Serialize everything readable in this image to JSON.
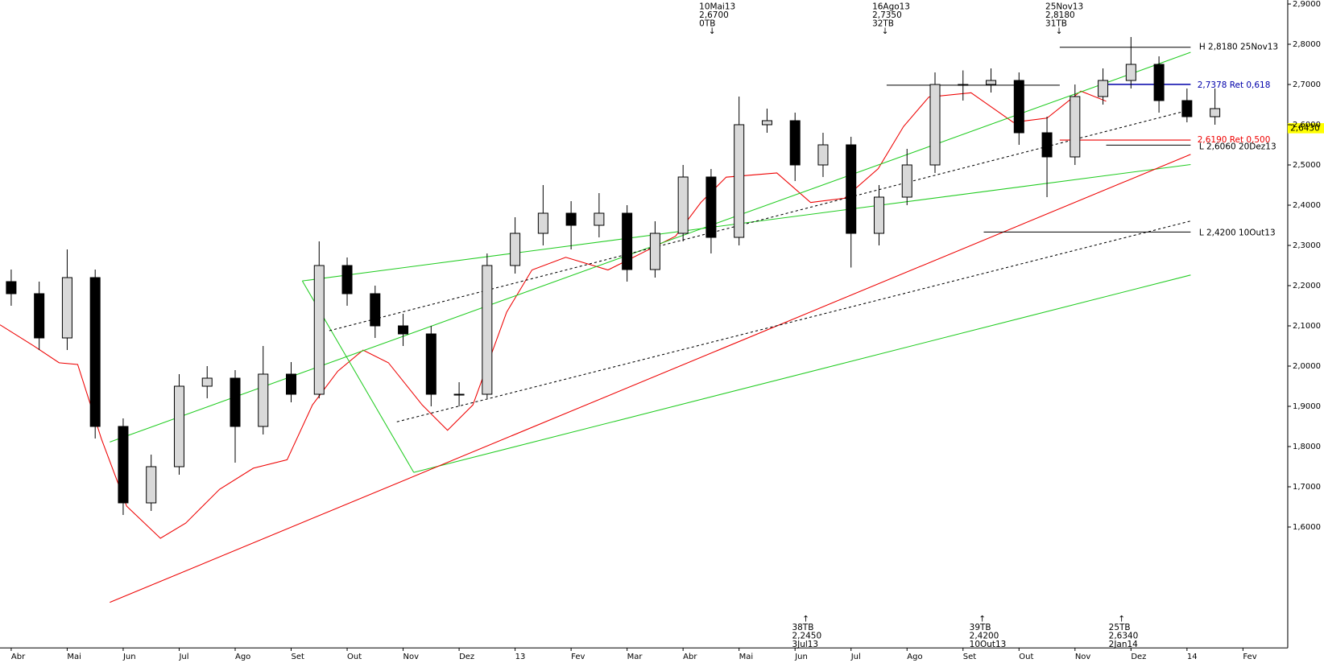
{
  "chart_data": {
    "type": "candlestick",
    "x": [
      0,
      0.5,
      1,
      1.5,
      2,
      2.5,
      3,
      3.5,
      4,
      4.5,
      5,
      5.5,
      6,
      6.5,
      7,
      7.5,
      8,
      8.5,
      9,
      9.5,
      10,
      10.5,
      11,
      11.5,
      12,
      12.5,
      13,
      13.5,
      14,
      14.5,
      15,
      15.5,
      16,
      16.5,
      17,
      17.5,
      18,
      18.5,
      19,
      19.5,
      20,
      20.5,
      21,
      21.5
    ],
    "open": [
      2.21,
      2.18,
      2.07,
      2.22,
      1.85,
      1.66,
      1.75,
      1.95,
      1.97,
      1.85,
      1.98,
      1.93,
      2.25,
      2.18,
      2.1,
      2.08,
      1.93,
      1.93,
      2.25,
      2.33,
      2.38,
      2.35,
      2.38,
      2.24,
      2.33,
      2.47,
      2.32,
      2.6,
      2.61,
      2.5,
      2.55,
      2.33,
      2.42,
      2.5,
      2.7,
      2.7,
      2.71,
      2.58,
      2.52,
      2.67,
      2.71,
      2.75,
      2.66,
      2.62
    ],
    "high": [
      2.24,
      2.21,
      2.29,
      2.24,
      1.87,
      1.78,
      1.98,
      2.0,
      1.99,
      2.05,
      2.01,
      2.31,
      2.27,
      2.2,
      2.13,
      2.1,
      1.96,
      2.28,
      2.37,
      2.45,
      2.41,
      2.43,
      2.4,
      2.36,
      2.5,
      2.49,
      2.67,
      2.64,
      2.63,
      2.58,
      2.57,
      2.45,
      2.54,
      2.73,
      2.735,
      2.74,
      2.73,
      2.62,
      2.7,
      2.74,
      2.818,
      2.77,
      2.69,
      2.69
    ],
    "low": [
      2.15,
      2.04,
      2.04,
      1.82,
      1.63,
      1.64,
      1.73,
      1.92,
      1.76,
      1.83,
      1.91,
      1.92,
      2.15,
      2.07,
      2.05,
      1.9,
      1.9,
      1.92,
      2.23,
      2.3,
      2.29,
      2.32,
      2.21,
      2.22,
      2.31,
      2.28,
      2.3,
      2.58,
      2.46,
      2.47,
      2.245,
      2.3,
      2.4,
      2.48,
      2.66,
      2.68,
      2.55,
      2.42,
      2.5,
      2.65,
      2.69,
      2.63,
      2.606,
      2.6
    ],
    "close": [
      2.18,
      2.07,
      2.22,
      1.85,
      1.66,
      1.75,
      1.95,
      1.97,
      1.85,
      1.98,
      1.93,
      2.25,
      2.18,
      2.1,
      2.08,
      1.93,
      1.93,
      2.25,
      2.33,
      2.38,
      2.35,
      2.38,
      2.24,
      2.33,
      2.47,
      2.32,
      2.6,
      2.61,
      2.5,
      2.55,
      2.33,
      2.42,
      2.5,
      2.7,
      2.7,
      2.71,
      2.58,
      2.52,
      2.67,
      2.71,
      2.75,
      2.66,
      2.62,
      2.64
    ],
    "up_color": "#d9d9d9",
    "down_color": "#000000",
    "xlim": [
      -0.2,
      22.8
    ],
    "xticks": [
      {
        "value": 0,
        "label": "Abr"
      },
      {
        "value": 1,
        "label": "Mai"
      },
      {
        "value": 2,
        "label": "Jun"
      },
      {
        "value": 3,
        "label": "Jul"
      },
      {
        "value": 4,
        "label": "Ago"
      },
      {
        "value": 5,
        "label": "Set"
      },
      {
        "value": 6,
        "label": "Out"
      },
      {
        "value": 7,
        "label": "Nov"
      },
      {
        "value": 8,
        "label": "Dez"
      },
      {
        "value": 9,
        "label": "13"
      },
      {
        "value": 10,
        "label": "Fev"
      },
      {
        "value": 11,
        "label": "Mar"
      },
      {
        "value": 12,
        "label": "Abr"
      },
      {
        "value": 13,
        "label": "Mai"
      },
      {
        "value": 14,
        "label": "Jun"
      },
      {
        "value": 15,
        "label": "Jul"
      },
      {
        "value": 16,
        "label": "Ago"
      },
      {
        "value": 17,
        "label": "Set"
      },
      {
        "value": 18,
        "label": "Out"
      },
      {
        "value": 19,
        "label": "Nov"
      },
      {
        "value": 20,
        "label": "Dez"
      },
      {
        "value": 21,
        "label": "14"
      },
      {
        "value": 22,
        "label": "Fev"
      }
    ],
    "ylim": [
      1.3,
      2.91
    ],
    "yticks": [
      {
        "value": 1.6,
        "label": "1,6000"
      },
      {
        "value": 1.7,
        "label": "1,7000"
      },
      {
        "value": 1.8,
        "label": "1,8000"
      },
      {
        "value": 1.9,
        "label": "1,9000"
      },
      {
        "value": 2.0,
        "label": "2,0000"
      },
      {
        "value": 2.1,
        "label": "2,1000"
      },
      {
        "value": 2.2,
        "label": "2,2000"
      },
      {
        "value": 2.3,
        "label": "2,3000"
      },
      {
        "value": 2.4,
        "label": "2,4000"
      },
      {
        "value": 2.5,
        "label": "2,5000"
      },
      {
        "value": 2.6,
        "label": "2,6000"
      },
      {
        "value": 2.7,
        "label": "2,7000"
      },
      {
        "value": 2.8,
        "label": "2,8000"
      },
      {
        "value": 2.9,
        "label": "2,9000"
      }
    ]
  },
  "annotations": {
    "top": [
      {
        "date": "10Mai13",
        "price": "2,6700",
        "count": "0TB"
      },
      {
        "date": "16Ago13",
        "price": "2,7350",
        "count": "32TB"
      },
      {
        "date": "25Nov13",
        "price": "2,8180",
        "count": "31TB"
      }
    ],
    "bottom": [
      {
        "count": "38TB",
        "price": "2,2450",
        "date": "3Jul13"
      },
      {
        "count": "39TB",
        "price": "2,4200",
        "date": "10Out13"
      },
      {
        "count": "25TB",
        "price": "2,6340",
        "date": "2Jan14"
      }
    ],
    "high_label": "H 2,8180 25Nov13",
    "ret618": "2,7378 Ret 0,618",
    "ret500": "2,6190 Ret 0,500",
    "low1": "L 2,6060 20Dez13",
    "low2": "L 2,4200 10Out13",
    "last_price": "2,6430"
  }
}
